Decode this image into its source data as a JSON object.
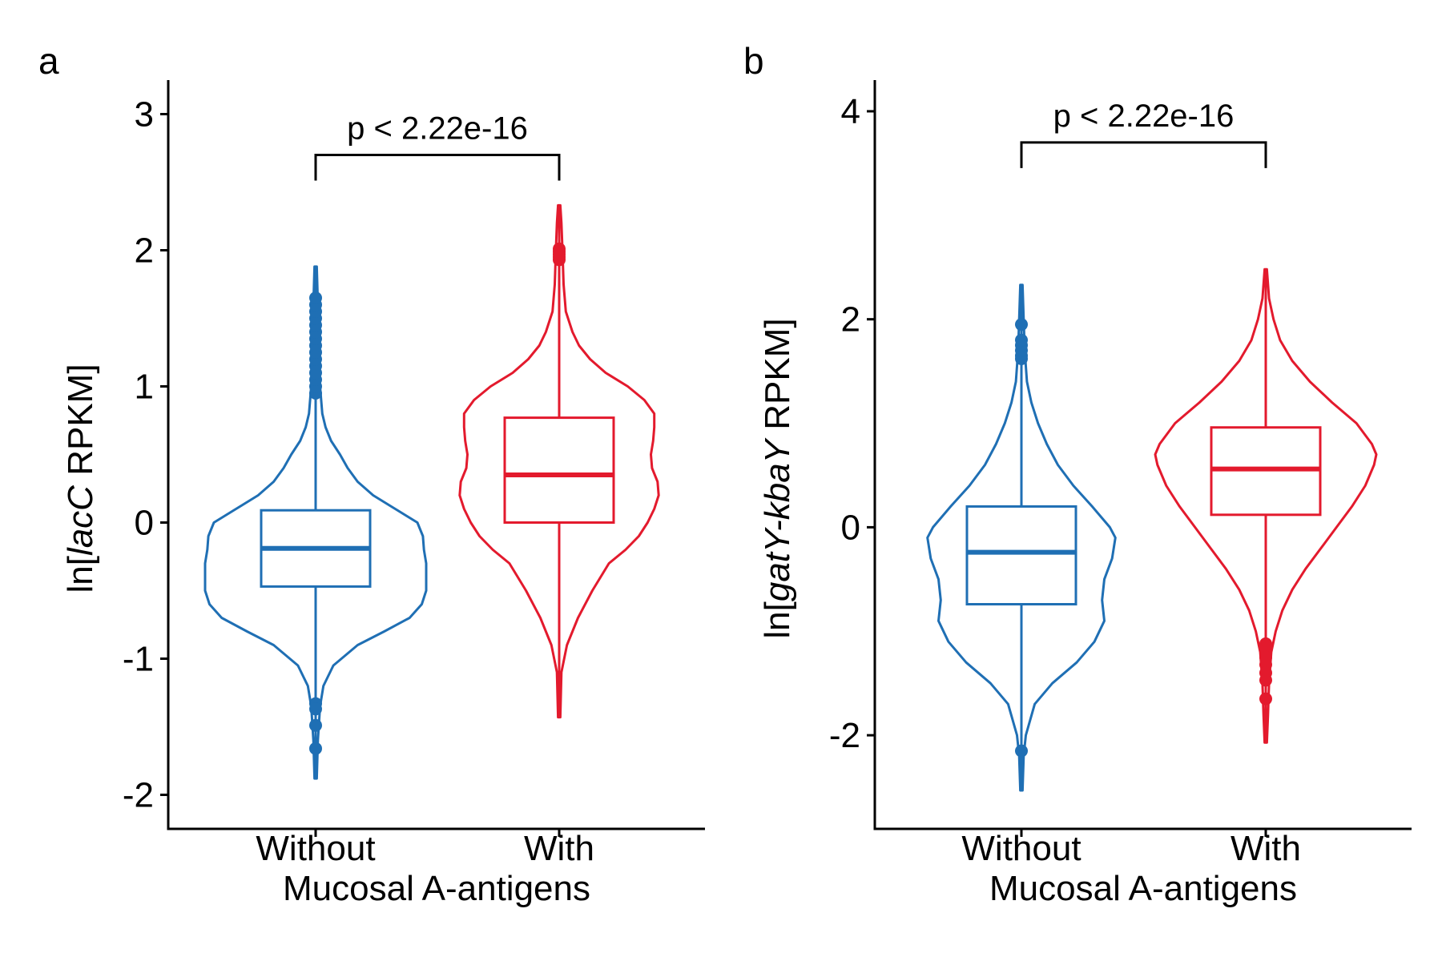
{
  "figure": {
    "colors": {
      "without": "#1f6fb4",
      "with": "#e31a2d",
      "axis": "#000000"
    }
  },
  "chart_data": [
    {
      "type": "violin",
      "panel_label": "a",
      "xlabel": "Mucosal A-antigens",
      "ylabel": {
        "prefix": "ln[",
        "italic": "lacC",
        "suffix": " RPKM]"
      },
      "categories": [
        "Without",
        "With"
      ],
      "ylim": [
        -2.25,
        3.25
      ],
      "yticks": [
        -2,
        -1,
        0,
        1,
        2,
        3
      ],
      "ytick_labels": [
        "-2",
        "-1",
        "0",
        "1",
        "2",
        "3"
      ],
      "grid": false,
      "significance": {
        "text": "p < 2.22e-16",
        "y": 2.7
      },
      "series": [
        {
          "category": "Without",
          "color": "without",
          "box": {
            "q1": -0.47,
            "median": -0.19,
            "q3": 0.09
          },
          "whisker": [
            -1.88,
            1.88
          ],
          "outliers": [
            0.95,
            1.0,
            1.05,
            1.1,
            1.15,
            1.2,
            1.25,
            1.3,
            1.35,
            1.4,
            1.45,
            1.5,
            1.55,
            1.6,
            1.65,
            -1.33,
            -1.37,
            -1.49,
            -1.66
          ],
          "violin": [
            [
              -1.88,
              0.01
            ],
            [
              -1.6,
              0.02
            ],
            [
              -1.35,
              0.04
            ],
            [
              -1.2,
              0.07
            ],
            [
              -1.05,
              0.16
            ],
            [
              -0.9,
              0.38
            ],
            [
              -0.8,
              0.62
            ],
            [
              -0.7,
              0.85
            ],
            [
              -0.6,
              0.96
            ],
            [
              -0.5,
              1.0
            ],
            [
              -0.4,
              1.0
            ],
            [
              -0.3,
              1.0
            ],
            [
              -0.2,
              0.98
            ],
            [
              -0.1,
              0.97
            ],
            [
              0.0,
              0.92
            ],
            [
              0.1,
              0.72
            ],
            [
              0.2,
              0.52
            ],
            [
              0.3,
              0.38
            ],
            [
              0.4,
              0.29
            ],
            [
              0.5,
              0.22
            ],
            [
              0.6,
              0.14
            ],
            [
              0.7,
              0.09
            ],
            [
              0.8,
              0.06
            ],
            [
              1.0,
              0.04
            ],
            [
              1.3,
              0.03
            ],
            [
              1.6,
              0.02
            ],
            [
              1.88,
              0.01
            ]
          ]
        },
        {
          "category": "With",
          "color": "with",
          "box": {
            "q1": 0.0,
            "median": 0.35,
            "q3": 0.77
          },
          "whisker": [
            -1.43,
            2.33
          ],
          "outliers": [
            1.93,
            1.95,
            1.97,
            1.99,
            2.01
          ],
          "violin": [
            [
              -1.43,
              0.01
            ],
            [
              -1.1,
              0.02
            ],
            [
              -0.9,
              0.07
            ],
            [
              -0.7,
              0.17
            ],
            [
              -0.5,
              0.3
            ],
            [
              -0.3,
              0.45
            ],
            [
              -0.2,
              0.6
            ],
            [
              -0.1,
              0.72
            ],
            [
              0.0,
              0.8
            ],
            [
              0.1,
              0.86
            ],
            [
              0.2,
              0.9
            ],
            [
              0.3,
              0.89
            ],
            [
              0.4,
              0.84
            ],
            [
              0.5,
              0.83
            ],
            [
              0.6,
              0.85
            ],
            [
              0.7,
              0.86
            ],
            [
              0.8,
              0.86
            ],
            [
              0.9,
              0.77
            ],
            [
              1.0,
              0.62
            ],
            [
              1.1,
              0.42
            ],
            [
              1.2,
              0.28
            ],
            [
              1.3,
              0.18
            ],
            [
              1.4,
              0.12
            ],
            [
              1.55,
              0.06
            ],
            [
              1.75,
              0.04
            ],
            [
              2.0,
              0.03
            ],
            [
              2.2,
              0.02
            ],
            [
              2.33,
              0.01
            ]
          ]
        }
      ]
    },
    {
      "type": "violin",
      "panel_label": "b",
      "xlabel": "Mucosal A-antigens",
      "ylabel": {
        "prefix": "ln[",
        "italic": "gatY-kbaY",
        "suffix": " RPKM]"
      },
      "categories": [
        "Without",
        "With"
      ],
      "ylim": [
        -2.9,
        4.3
      ],
      "yticks": [
        -2,
        0,
        2,
        4
      ],
      "ytick_labels": [
        "-2",
        "0",
        "2",
        "4"
      ],
      "grid": false,
      "significance": {
        "text": "p < 2.22e-16",
        "y": 3.7
      },
      "series": [
        {
          "category": "Without",
          "color": "without",
          "box": {
            "q1": -0.74,
            "median": -0.24,
            "q3": 0.2
          },
          "whisker": [
            -2.53,
            2.33
          ],
          "outliers": [
            1.62,
            1.65,
            1.7,
            1.75,
            1.8,
            1.95,
            -2.15
          ],
          "violin": [
            [
              -2.53,
              0.01
            ],
            [
              -2.2,
              0.02
            ],
            [
              -2.0,
              0.04
            ],
            [
              -1.7,
              0.12
            ],
            [
              -1.5,
              0.28
            ],
            [
              -1.3,
              0.5
            ],
            [
              -1.1,
              0.66
            ],
            [
              -0.9,
              0.75
            ],
            [
              -0.7,
              0.73
            ],
            [
              -0.5,
              0.75
            ],
            [
              -0.3,
              0.82
            ],
            [
              -0.1,
              0.85
            ],
            [
              0.0,
              0.8
            ],
            [
              0.2,
              0.64
            ],
            [
              0.4,
              0.47
            ],
            [
              0.6,
              0.33
            ],
            [
              0.8,
              0.23
            ],
            [
              1.0,
              0.15
            ],
            [
              1.2,
              0.09
            ],
            [
              1.4,
              0.05
            ],
            [
              1.7,
              0.03
            ],
            [
              2.0,
              0.02
            ],
            [
              2.33,
              0.01
            ]
          ]
        },
        {
          "category": "With",
          "color": "with",
          "box": {
            "q1": 0.12,
            "median": 0.56,
            "q3": 0.96
          },
          "whisker": [
            -2.07,
            2.48
          ],
          "outliers": [
            -1.12,
            -1.18,
            -1.25,
            -1.32,
            -1.4,
            -1.47,
            -1.65
          ],
          "violin": [
            [
              -2.07,
              0.01
            ],
            [
              -1.8,
              0.02
            ],
            [
              -1.5,
              0.03
            ],
            [
              -1.2,
              0.05
            ],
            [
              -1.0,
              0.09
            ],
            [
              -0.8,
              0.15
            ],
            [
              -0.6,
              0.24
            ],
            [
              -0.4,
              0.36
            ],
            [
              -0.2,
              0.5
            ],
            [
              0.0,
              0.64
            ],
            [
              0.2,
              0.78
            ],
            [
              0.4,
              0.9
            ],
            [
              0.6,
              0.98
            ],
            [
              0.7,
              1.0
            ],
            [
              0.8,
              0.96
            ],
            [
              1.0,
              0.82
            ],
            [
              1.2,
              0.6
            ],
            [
              1.4,
              0.4
            ],
            [
              1.6,
              0.24
            ],
            [
              1.8,
              0.13
            ],
            [
              2.0,
              0.07
            ],
            [
              2.2,
              0.03
            ],
            [
              2.48,
              0.01
            ]
          ]
        }
      ]
    }
  ]
}
